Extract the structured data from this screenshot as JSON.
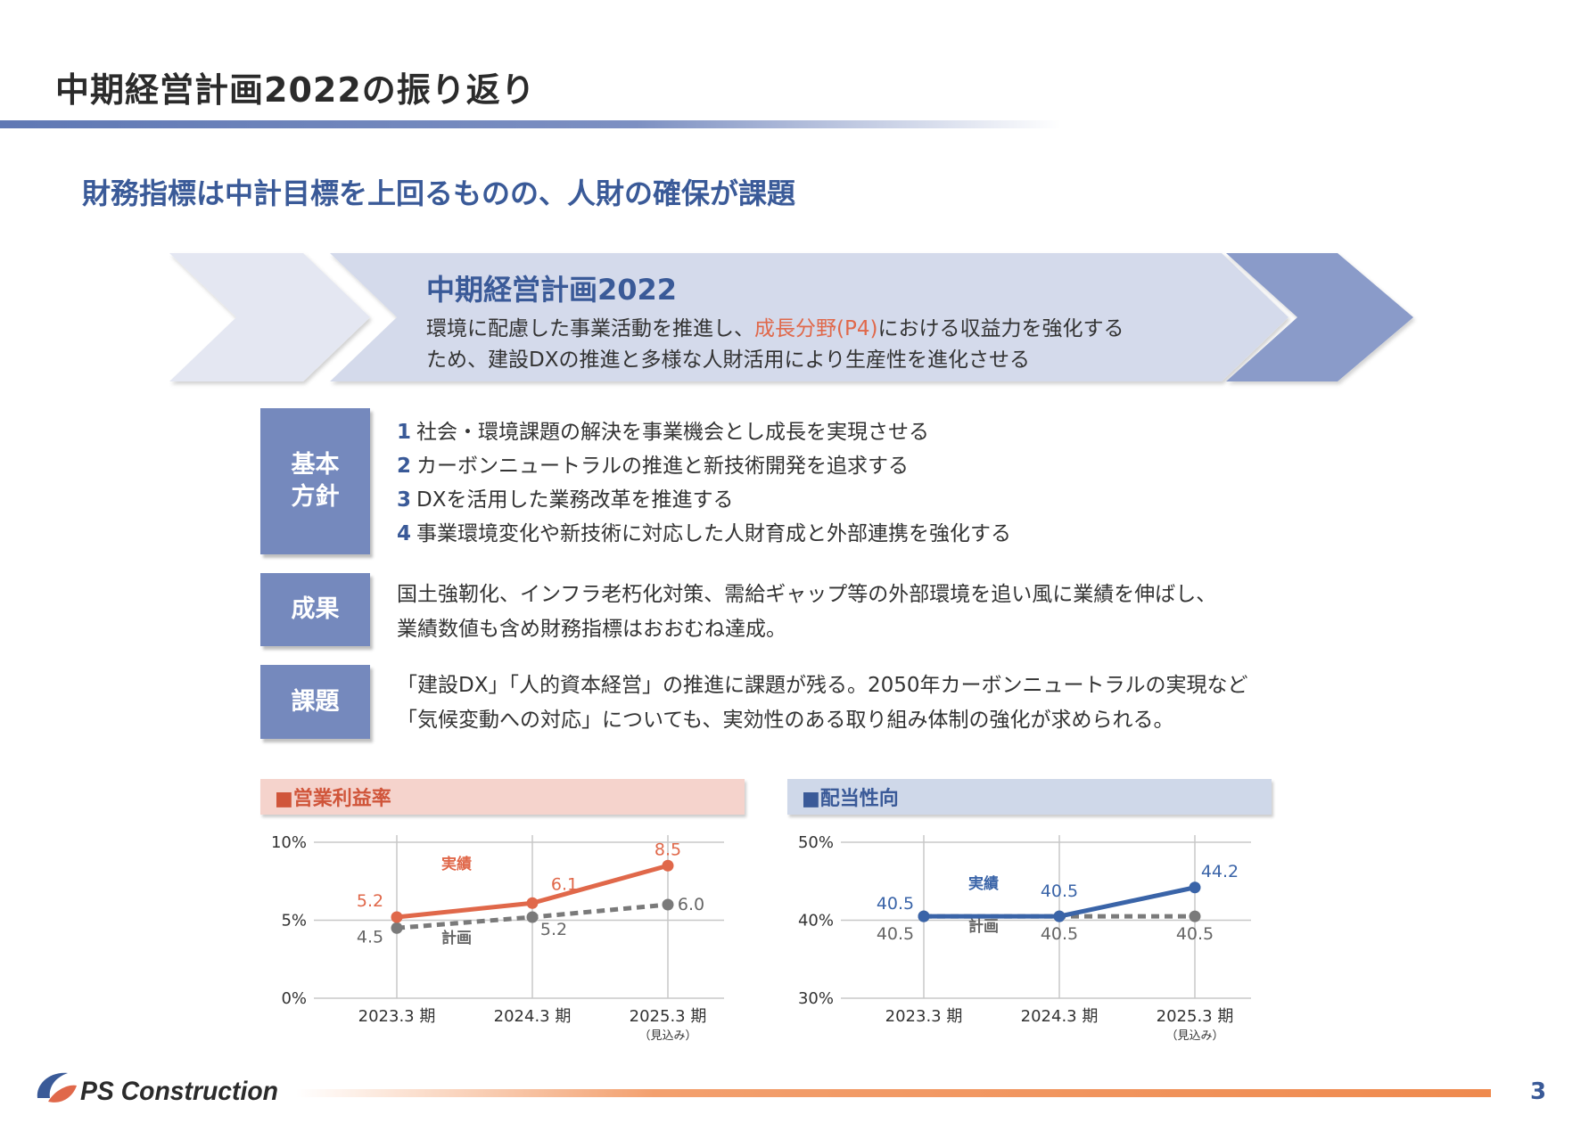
{
  "title": "中期経営計画2022の振り返り",
  "headline": "財務指標は中計目標を上回るものの、人財の確保が課題",
  "plan": {
    "title": "中期経営計画2022",
    "line1_before": "環境に配慮した事業活動を推進し、",
    "line1_highlight": "成長分野(P4)",
    "line1_after": "における収益力を強化する",
    "line2": "ため、建設DXの推進と多様な人財活用により生産性を進化させる"
  },
  "policy": {
    "label_line1": "基本",
    "label_line2": "方針",
    "items": [
      {
        "num": "1",
        "text": "社会・環境課題の解決を事業機会とし成長を実現させる"
      },
      {
        "num": "2",
        "text": "カーボンニュートラルの推進と新技術開発を追求する"
      },
      {
        "num": "3",
        "text": "DXを活用した業務改革を推進する"
      },
      {
        "num": "4",
        "text": "事業環境変化や新技術に対応した人財育成と外部連携を強化する"
      }
    ]
  },
  "result": {
    "label": "成果",
    "line1": "国土強靭化、インフラ老朽化対策、需給ギャップ等の外部環境を追い風に業績を伸ばし、",
    "line2": "業績数値も含め財務指標はおおむね達成。"
  },
  "issue": {
    "label": "課題",
    "line1": "「建設DX」「人的資本経営」の推進に課題が残る。2050年カーボンニュートラルの実現など",
    "line2": "「気候変動への対応」についても、実効性のある取り組み体制の強化が求められる。"
  },
  "chart_data": [
    {
      "type": "line",
      "title": "■営業利益率",
      "categories": [
        "2023.3 期",
        "2024.3 期",
        "2025.3 期"
      ],
      "category_notes": [
        "",
        "",
        "（見込み）"
      ],
      "y_ticks": [
        "0%",
        "5%",
        "10%"
      ],
      "ylim": [
        0,
        10
      ],
      "series": [
        {
          "name": "実績",
          "values": [
            5.2,
            6.1,
            8.5
          ],
          "labels": [
            "5.2",
            "6.1",
            "8.5"
          ],
          "color": "#e0684a",
          "style": "solid"
        },
        {
          "name": "計画",
          "values": [
            4.5,
            5.2,
            6.0
          ],
          "labels": [
            "4.5",
            "5.2",
            "6.0"
          ],
          "color": "#7a7a7a",
          "style": "dashed"
        }
      ]
    },
    {
      "type": "line",
      "title": "■配当性向",
      "categories": [
        "2023.3 期",
        "2024.3 期",
        "2025.3 期"
      ],
      "category_notes": [
        "",
        "",
        "（見込み）"
      ],
      "y_ticks": [
        "30%",
        "40%",
        "50%"
      ],
      "ylim": [
        30,
        50
      ],
      "series": [
        {
          "name": "実績",
          "values": [
            40.5,
            40.5,
            44.2
          ],
          "labels": [
            "40.5",
            "40.5",
            "44.2"
          ],
          "color": "#3a64a8",
          "style": "solid"
        },
        {
          "name": "計画",
          "values": [
            40.5,
            40.5,
            40.5
          ],
          "labels": [
            "40.5",
            "40.5",
            "40.5"
          ],
          "color": "#7a7a7a",
          "style": "dashed"
        }
      ]
    }
  ],
  "footer": {
    "logo_text": "PS Construction",
    "page": "3"
  }
}
